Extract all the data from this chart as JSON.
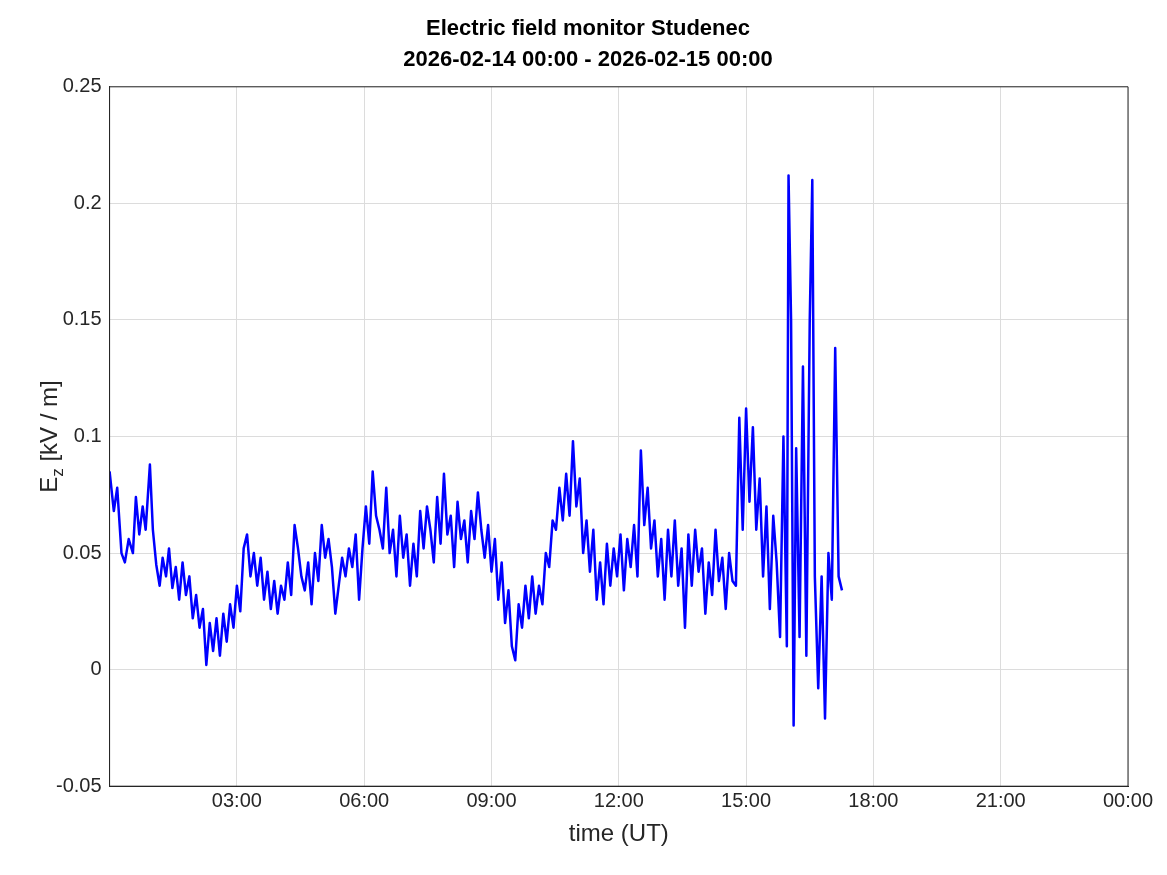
{
  "chart_data": {
    "type": "line",
    "title": "Electric field monitor Studenec",
    "subtitle": "2026-02-14 00:00 - 2026-02-15 00:00",
    "xlabel": "time (UT)",
    "ylabel": "E$_{z}$ [kV / m]",
    "xlim": [
      0,
      24
    ],
    "xticks": [
      {
        "value": 3,
        "label": "03:00"
      },
      {
        "value": 6,
        "label": "06:00"
      },
      {
        "value": 9,
        "label": "09:00"
      },
      {
        "value": 12,
        "label": "12:00"
      },
      {
        "value": 15,
        "label": "15:00"
      },
      {
        "value": 18,
        "label": "18:00"
      },
      {
        "value": 21,
        "label": "21:00"
      },
      {
        "value": 24,
        "label": "00:00"
      }
    ],
    "ylim": [
      -0.05,
      0.25
    ],
    "yticks": [
      -0.05,
      0,
      0.05,
      0.1,
      0.15,
      0.2,
      0.25
    ],
    "grid": true,
    "marker": "none",
    "line_style": "solid",
    "series": [
      {
        "color": "#0000ff",
        "x": [
          0,
          0.1,
          0.18,
          0.28,
          0.36,
          0.45,
          0.55,
          0.62,
          0.7,
          0.78,
          0.85,
          0.95,
          1.02,
          1.1,
          1.18,
          1.25,
          1.33,
          1.4,
          1.48,
          1.56,
          1.64,
          1.72,
          1.8,
          1.88,
          1.96,
          2.04,
          2.12,
          2.2,
          2.28,
          2.36,
          2.44,
          2.52,
          2.6,
          2.68,
          2.76,
          2.84,
          2.92,
          3,
          3.08,
          3.16,
          3.24,
          3.32,
          3.4,
          3.48,
          3.56,
          3.64,
          3.72,
          3.8,
          3.88,
          3.96,
          4.04,
          4.12,
          4.2,
          4.28,
          4.36,
          4.44,
          4.52,
          4.6,
          4.68,
          4.76,
          4.84,
          4.92,
          5,
          5.08,
          5.16,
          5.24,
          5.32,
          5.4,
          5.48,
          5.56,
          5.64,
          5.72,
          5.8,
          5.88,
          5.96,
          6.04,
          6.12,
          6.2,
          6.28,
          6.36,
          6.44,
          6.52,
          6.6,
          6.68,
          6.76,
          6.84,
          6.92,
          7,
          7.08,
          7.16,
          7.24,
          7.32,
          7.4,
          7.48,
          7.56,
          7.64,
          7.72,
          7.8,
          7.88,
          7.96,
          8.04,
          8.12,
          8.2,
          8.28,
          8.36,
          8.44,
          8.52,
          8.6,
          8.68,
          8.76,
          8.84,
          8.92,
          9,
          9.08,
          9.16,
          9.24,
          9.32,
          9.4,
          9.48,
          9.56,
          9.64,
          9.72,
          9.8,
          9.88,
          9.96,
          10.04,
          10.12,
          10.2,
          10.28,
          10.36,
          10.44,
          10.52,
          10.6,
          10.68,
          10.76,
          10.84,
          10.92,
          11,
          11.08,
          11.16,
          11.24,
          11.32,
          11.4,
          11.48,
          11.56,
          11.64,
          11.72,
          11.8,
          11.88,
          11.96,
          12.04,
          12.12,
          12.2,
          12.28,
          12.36,
          12.44,
          12.52,
          12.6,
          12.68,
          12.76,
          12.84,
          12.92,
          13,
          13.08,
          13.16,
          13.24,
          13.32,
          13.4,
          13.48,
          13.56,
          13.64,
          13.72,
          13.8,
          13.88,
          13.96,
          14.04,
          14.12,
          14.2,
          14.28,
          14.36,
          14.44,
          14.52,
          14.6,
          14.68,
          14.76,
          14.84,
          14.92,
          15,
          15.08,
          15.16,
          15.24,
          15.32,
          15.4,
          15.48,
          15.56,
          15.64,
          15.72,
          15.8,
          15.88,
          15.96,
          16,
          16.06,
          16.12,
          16.18,
          16.26,
          16.34,
          16.42,
          16.5,
          16.56,
          16.62,
          16.7,
          16.78,
          16.86,
          16.94,
          17.02,
          17.1,
          17.18,
          17.26
        ],
        "values": [
          0.085,
          0.068,
          0.078,
          0.05,
          0.046,
          0.056,
          0.05,
          0.074,
          0.058,
          0.07,
          0.06,
          0.088,
          0.06,
          0.045,
          0.036,
          0.048,
          0.04,
          0.052,
          0.035,
          0.044,
          0.03,
          0.046,
          0.032,
          0.04,
          0.022,
          0.032,
          0.018,
          0.026,
          0.002,
          0.02,
          0.008,
          0.022,
          0.006,
          0.024,
          0.012,
          0.028,
          0.018,
          0.036,
          0.025,
          0.052,
          0.058,
          0.04,
          0.05,
          0.036,
          0.048,
          0.03,
          0.042,
          0.026,
          0.038,
          0.024,
          0.036,
          0.03,
          0.046,
          0.032,
          0.062,
          0.052,
          0.04,
          0.034,
          0.046,
          0.028,
          0.05,
          0.038,
          0.062,
          0.048,
          0.056,
          0.044,
          0.024,
          0.036,
          0.048,
          0.04,
          0.052,
          0.044,
          0.058,
          0.03,
          0.052,
          0.07,
          0.054,
          0.085,
          0.066,
          0.06,
          0.052,
          0.078,
          0.05,
          0.06,
          0.04,
          0.066,
          0.048,
          0.058,
          0.036,
          0.054,
          0.04,
          0.068,
          0.052,
          0.07,
          0.06,
          0.046,
          0.074,
          0.054,
          0.084,
          0.058,
          0.066,
          0.044,
          0.072,
          0.056,
          0.064,
          0.046,
          0.068,
          0.056,
          0.076,
          0.06,
          0.048,
          0.062,
          0.042,
          0.056,
          0.03,
          0.046,
          0.02,
          0.034,
          0.01,
          0.004,
          0.028,
          0.018,
          0.036,
          0.022,
          0.04,
          0.024,
          0.036,
          0.028,
          0.05,
          0.044,
          0.064,
          0.06,
          0.078,
          0.064,
          0.084,
          0.066,
          0.098,
          0.07,
          0.082,
          0.05,
          0.064,
          0.042,
          0.06,
          0.03,
          0.046,
          0.028,
          0.054,
          0.036,
          0.052,
          0.04,
          0.058,
          0.034,
          0.056,
          0.044,
          0.062,
          0.04,
          0.094,
          0.062,
          0.078,
          0.052,
          0.064,
          0.04,
          0.056,
          0.03,
          0.06,
          0.04,
          0.064,
          0.036,
          0.052,
          0.018,
          0.058,
          0.036,
          0.06,
          0.042,
          0.052,
          0.024,
          0.046,
          0.032,
          0.06,
          0.038,
          0.048,
          0.026,
          0.05,
          0.038,
          0.036,
          0.108,
          0.06,
          0.112,
          0.072,
          0.104,
          0.06,
          0.082,
          0.04,
          0.07,
          0.026,
          0.066,
          0.046,
          0.014,
          0.1,
          0.01,
          0.212,
          0.15,
          -0.024,
          0.095,
          0.014,
          0.13,
          0.006,
          0.15,
          0.21,
          0.04,
          -0.008,
          0.04,
          -0.021,
          0.05,
          0.03,
          0.138,
          0.04,
          0.034
        ]
      }
    ]
  }
}
